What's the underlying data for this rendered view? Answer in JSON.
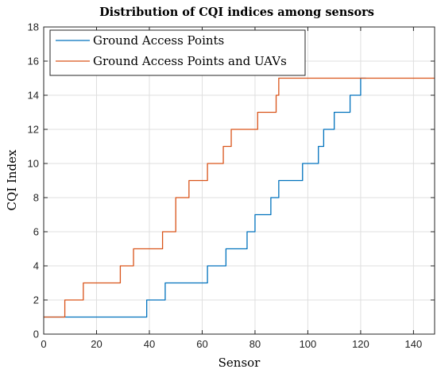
{
  "chart_data": {
    "type": "line",
    "title": "Distribution of CQI indices among sensors",
    "xlabel": "Sensor",
    "ylabel": "CQI Index",
    "xlim": [
      0,
      148
    ],
    "ylim": [
      0,
      18
    ],
    "xticks": [
      0,
      20,
      40,
      60,
      80,
      100,
      120,
      140
    ],
    "yticks": [
      0,
      2,
      4,
      6,
      8,
      10,
      12,
      14,
      16,
      18
    ],
    "grid": true,
    "legend_position": "top-left",
    "series": [
      {
        "name": "Ground Access Points",
        "color": "#0072BD",
        "step_points": [
          [
            0,
            1
          ],
          [
            39,
            1
          ],
          [
            39,
            2
          ],
          [
            46,
            2
          ],
          [
            46,
            3
          ],
          [
            62,
            3
          ],
          [
            62,
            4
          ],
          [
            69,
            4
          ],
          [
            69,
            5
          ],
          [
            77,
            5
          ],
          [
            77,
            6
          ],
          [
            80,
            6
          ],
          [
            80,
            7
          ],
          [
            86,
            7
          ],
          [
            86,
            8
          ],
          [
            89,
            8
          ],
          [
            89,
            9
          ],
          [
            98,
            9
          ],
          [
            98,
            10
          ],
          [
            104,
            10
          ],
          [
            104,
            11
          ],
          [
            106,
            11
          ],
          [
            106,
            12
          ],
          [
            110,
            12
          ],
          [
            110,
            13
          ],
          [
            116,
            13
          ],
          [
            116,
            14
          ],
          [
            120,
            14
          ],
          [
            120,
            15
          ],
          [
            122,
            15
          ]
        ]
      },
      {
        "name": "Ground Access Points and UAVs",
        "color": "#D95319",
        "step_points": [
          [
            0,
            1
          ],
          [
            8,
            1
          ],
          [
            8,
            2
          ],
          [
            15,
            2
          ],
          [
            15,
            3
          ],
          [
            29,
            3
          ],
          [
            29,
            4
          ],
          [
            34,
            4
          ],
          [
            34,
            5
          ],
          [
            45,
            5
          ],
          [
            45,
            6
          ],
          [
            50,
            6
          ],
          [
            50,
            8
          ],
          [
            55,
            8
          ],
          [
            55,
            9
          ],
          [
            62,
            9
          ],
          [
            62,
            10
          ],
          [
            68,
            10
          ],
          [
            68,
            11
          ],
          [
            71,
            11
          ],
          [
            71,
            12
          ],
          [
            81,
            12
          ],
          [
            81,
            13
          ],
          [
            88,
            13
          ],
          [
            88,
            14
          ],
          [
            89,
            14
          ],
          [
            89,
            15
          ],
          [
            148,
            15
          ]
        ]
      }
    ]
  }
}
